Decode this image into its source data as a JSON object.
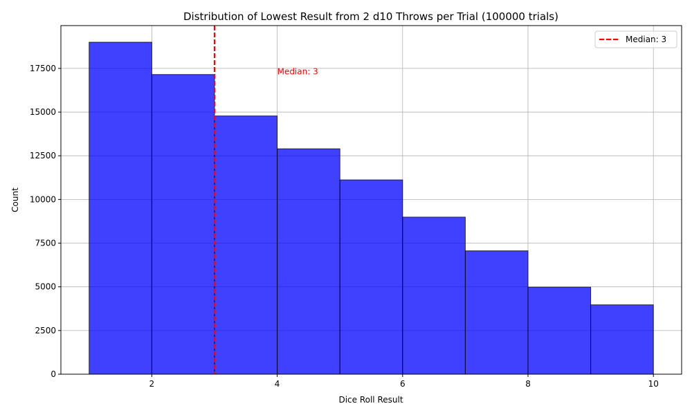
{
  "chart_data": {
    "type": "bar",
    "subtype": "histogram",
    "title": "Distribution of Lowest Result from 2 d10 Throws per Trial (100000 trials)",
    "xlabel": "Dice Roll Result",
    "ylabel": "Count",
    "xlim": [
      0.55,
      10.45
    ],
    "ylim": [
      0,
      19950
    ],
    "xticks": [
      2,
      4,
      6,
      8,
      10
    ],
    "yticks": [
      0,
      2500,
      5000,
      7500,
      10000,
      12500,
      15000,
      17500
    ],
    "grid": true,
    "bins": [
      {
        "start": 1,
        "end": 2,
        "count": 19000
      },
      {
        "start": 2,
        "end": 3,
        "count": 17150
      },
      {
        "start": 3,
        "end": 4,
        "count": 14780
      },
      {
        "start": 4,
        "end": 5,
        "count": 12900
      },
      {
        "start": 5,
        "end": 6,
        "count": 11120
      },
      {
        "start": 6,
        "end": 7,
        "count": 8990
      },
      {
        "start": 7,
        "end": 8,
        "count": 7060
      },
      {
        "start": 8,
        "end": 9,
        "count": 4980
      },
      {
        "start": 9,
        "end": 10,
        "count": 3970
      }
    ],
    "median": 3,
    "median_label": "Median: 3",
    "annotation": {
      "text": "Median: 3",
      "x": 4,
      "y": 17150
    },
    "legend": {
      "position": "top-right",
      "entries": [
        {
          "label": "Median: 3",
          "style": "dashed",
          "color": "#ff0000"
        }
      ]
    },
    "colors": {
      "bar_fill": "#0000ff",
      "bar_opacity": 0.75,
      "bar_edge": "#000000",
      "median_line": "#ff0000",
      "grid": "#b0b0b0"
    }
  }
}
